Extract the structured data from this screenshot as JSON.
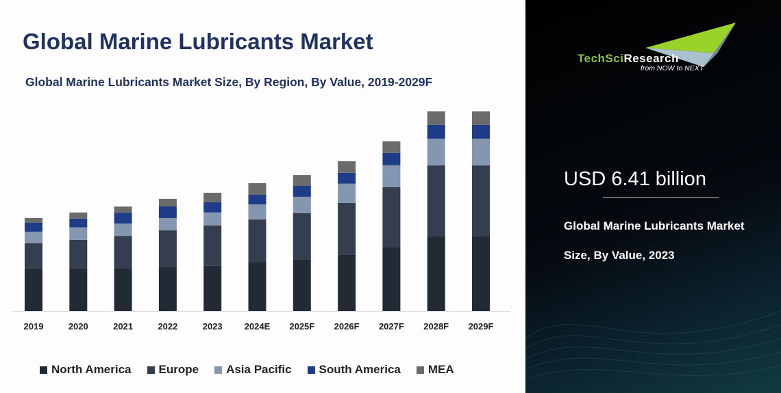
{
  "title": "Global Marine Lubricants Market",
  "colors": {
    "North America": "#222a36",
    "Europe": "#343e4f",
    "Asia Pacific": "#8496b0",
    "South America": "#1f3c88",
    "MEA": "#6b6b6b",
    "title": "#1f3260"
  },
  "chart_data": {
    "type": "bar",
    "stacked": true,
    "title": "Global Marine Lubricants Market Size, By Region, By Value, 2019-2029F",
    "xlabel": "",
    "ylabel": "",
    "grid": false,
    "legend_position": "bottom",
    "categories": [
      "2019",
      "2020",
      "2021",
      "2022",
      "2023",
      "2024E",
      "2025F",
      "2026F",
      "2027F",
      "2028F",
      "2029F"
    ],
    "series": [
      {
        "name": "North America",
        "values": [
          2.3,
          2.3,
          2.33,
          2.37,
          2.45,
          2.63,
          2.78,
          3.04,
          3.45,
          4.04,
          4.04
        ]
      },
      {
        "name": "Europe",
        "values": [
          1.37,
          1.56,
          1.74,
          2.0,
          2.19,
          2.33,
          2.52,
          2.82,
          3.26,
          3.85,
          3.85
        ]
      },
      {
        "name": "Asia Pacific",
        "values": [
          0.63,
          0.67,
          0.67,
          0.67,
          0.7,
          0.82,
          0.89,
          1.04,
          1.19,
          1.45,
          1.45
        ]
      },
      {
        "name": "South America",
        "values": [
          0.48,
          0.48,
          0.59,
          0.63,
          0.56,
          0.52,
          0.59,
          0.59,
          0.67,
          0.74,
          0.74
        ]
      },
      {
        "name": "MEA",
        "values": [
          0.26,
          0.33,
          0.33,
          0.41,
          0.51,
          0.63,
          0.59,
          0.63,
          0.63,
          0.74,
          0.74
        ]
      }
    ],
    "ylim": [
      0,
      11
    ]
  },
  "logo": {
    "name_green": "TechSci",
    "name_white": "Research",
    "tagline": "from NOW to NEXT"
  },
  "highlight": {
    "value": "USD 6.41 billion",
    "caption_line1": "Global Marine Lubricants Market",
    "caption_line2": "Size, By Value, 2023"
  }
}
